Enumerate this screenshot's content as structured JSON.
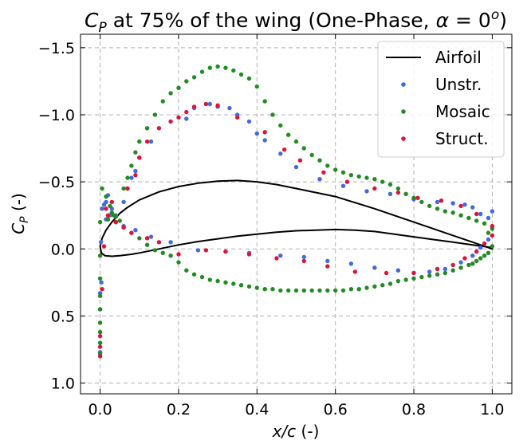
{
  "chart_data": {
    "type": "scatter",
    "title": {
      "pre": "C",
      "sub": "P",
      "mid": " at 75% of the wing (One-Phase, ",
      "alpha": "α",
      "eq": " = 0",
      "sup": "o",
      "post": ")"
    },
    "xlabel": {
      "italic": "x/c",
      "rest": " (-)"
    },
    "ylabel": {
      "pre": "C",
      "sub": "P",
      "rest": " (-)"
    },
    "xlim": [
      -0.05,
      1.05
    ],
    "ylim": [
      -1.6,
      1.08
    ],
    "y_inverted": true,
    "grid": true,
    "grid_style": "dashed",
    "legend_position": "top-right",
    "x_ticks": [
      {
        "value": 0.0,
        "label": "0.0"
      },
      {
        "value": 0.2,
        "label": "0.2"
      },
      {
        "value": 0.4,
        "label": "0.4"
      },
      {
        "value": 0.6,
        "label": "0.6"
      },
      {
        "value": 0.8,
        "label": "0.8"
      },
      {
        "value": 1.0,
        "label": "1.0"
      }
    ],
    "y_ticks": [
      {
        "value": -1.5,
        "label": "−1.5"
      },
      {
        "value": -1.0,
        "label": "−1.0"
      },
      {
        "value": -0.5,
        "label": "−0.5"
      },
      {
        "value": 0.0,
        "label": "0.0"
      },
      {
        "value": 0.5,
        "label": "0.5"
      },
      {
        "value": 1.0,
        "label": "1.0"
      }
    ],
    "series": [
      {
        "name": "Airfoil",
        "kind": "line",
        "color": "#000000",
        "points": [
          [
            1.0,
            0.0
          ],
          [
            0.95,
            -0.05
          ],
          [
            0.9,
            -0.1
          ],
          [
            0.8,
            -0.2
          ],
          [
            0.7,
            -0.3
          ],
          [
            0.6,
            -0.39
          ],
          [
            0.5,
            -0.45
          ],
          [
            0.45,
            -0.48
          ],
          [
            0.4,
            -0.5
          ],
          [
            0.35,
            -0.51
          ],
          [
            0.3,
            -0.505
          ],
          [
            0.25,
            -0.49
          ],
          [
            0.2,
            -0.465
          ],
          [
            0.15,
            -0.425
          ],
          [
            0.1,
            -0.365
          ],
          [
            0.07,
            -0.31
          ],
          [
            0.05,
            -0.265
          ],
          [
            0.03,
            -0.2
          ],
          [
            0.015,
            -0.14
          ],
          [
            0.005,
            -0.08
          ],
          [
            0.0,
            -0.02
          ],
          [
            0.003,
            0.03
          ],
          [
            0.012,
            0.05
          ],
          [
            0.03,
            0.055
          ],
          [
            0.05,
            0.05
          ],
          [
            0.08,
            0.04
          ],
          [
            0.1,
            0.03
          ],
          [
            0.15,
            0.0
          ],
          [
            0.2,
            -0.03
          ],
          [
            0.25,
            -0.055
          ],
          [
            0.3,
            -0.075
          ],
          [
            0.35,
            -0.095
          ],
          [
            0.4,
            -0.11
          ],
          [
            0.45,
            -0.125
          ],
          [
            0.5,
            -0.135
          ],
          [
            0.55,
            -0.14
          ],
          [
            0.6,
            -0.145
          ],
          [
            0.65,
            -0.14
          ],
          [
            0.7,
            -0.13
          ],
          [
            0.75,
            -0.11
          ],
          [
            0.8,
            -0.09
          ],
          [
            0.85,
            -0.07
          ],
          [
            0.9,
            -0.05
          ],
          [
            0.95,
            -0.03
          ],
          [
            1.0,
            -0.01
          ]
        ]
      },
      {
        "name": "Unstr.",
        "kind": "scatter",
        "color": "#4169e1",
        "points": [
          [
            0.0,
            0.33
          ],
          [
            0.0,
            0.45
          ],
          [
            0.0,
            0.62
          ],
          [
            0.0,
            0.7
          ],
          [
            0.0,
            0.77
          ],
          [
            0.002,
            -0.05
          ],
          [
            0.003,
            0.25
          ],
          [
            0.005,
            -0.3
          ],
          [
            0.01,
            -0.33
          ],
          [
            0.015,
            -0.35
          ],
          [
            0.02,
            -0.4
          ],
          [
            0.03,
            -0.3
          ],
          [
            0.04,
            -0.25
          ],
          [
            0.06,
            -0.35
          ],
          [
            0.07,
            -0.45
          ],
          [
            0.08,
            -0.53
          ],
          [
            0.09,
            -0.58
          ],
          [
            0.1,
            -0.68
          ],
          [
            0.13,
            -0.8
          ],
          [
            0.22,
            -0.97
          ],
          [
            0.24,
            -1.05
          ],
          [
            0.28,
            -1.08
          ],
          [
            0.3,
            -1.06
          ],
          [
            0.33,
            -1.05
          ],
          [
            0.35,
            -1.0
          ],
          [
            0.38,
            -0.95
          ],
          [
            0.4,
            -0.86
          ],
          [
            0.42,
            -0.81
          ],
          [
            0.46,
            -0.71
          ],
          [
            0.5,
            -0.61
          ],
          [
            0.56,
            -0.52
          ],
          [
            0.62,
            -0.47
          ],
          [
            0.68,
            -0.43
          ],
          [
            0.74,
            -0.41
          ],
          [
            0.8,
            -0.37
          ],
          [
            0.86,
            -0.35
          ],
          [
            0.9,
            -0.34
          ],
          [
            0.93,
            -0.33
          ],
          [
            0.95,
            -0.31
          ],
          [
            0.97,
            -0.26
          ],
          [
            0.99,
            -0.23
          ],
          [
            1.0,
            -0.28
          ],
          [
            0.99,
            -0.07
          ],
          [
            0.97,
            -0.01
          ],
          [
            0.95,
            0.05
          ],
          [
            0.92,
            0.1
          ],
          [
            0.88,
            0.15
          ],
          [
            0.84,
            0.17
          ],
          [
            0.8,
            0.18
          ],
          [
            0.76,
            0.16
          ],
          [
            0.7,
            0.14
          ],
          [
            0.64,
            0.11
          ],
          [
            0.58,
            0.09
          ],
          [
            0.52,
            0.06
          ],
          [
            0.46,
            0.05
          ],
          [
            0.38,
            0.03
          ],
          [
            0.32,
            0.02
          ],
          [
            0.25,
            0.01
          ],
          [
            0.18,
            -0.05
          ],
          [
            0.13,
            -0.09
          ],
          [
            0.09,
            -0.14
          ],
          [
            0.06,
            -0.17
          ],
          [
            0.04,
            -0.2
          ],
          [
            0.025,
            -0.25
          ],
          [
            0.015,
            -0.22
          ]
        ]
      },
      {
        "name": "Mosaic",
        "kind": "scatter",
        "color": "#228b22",
        "points": [
          [
            0.0,
            0.78
          ],
          [
            0.0,
            0.7
          ],
          [
            0.0,
            0.62
          ],
          [
            0.0,
            0.55
          ],
          [
            0.0,
            0.45
          ],
          [
            0.0,
            0.35
          ],
          [
            0.0,
            0.22
          ],
          [
            0.0,
            0.05
          ],
          [
            0.0,
            -0.2
          ],
          [
            0.005,
            -0.45
          ],
          [
            0.015,
            -0.39
          ],
          [
            0.025,
            -0.32
          ],
          [
            0.035,
            -0.25
          ],
          [
            0.06,
            -0.45
          ],
          [
            0.07,
            -0.53
          ],
          [
            0.08,
            -0.62
          ],
          [
            0.09,
            -0.72
          ],
          [
            0.1,
            -0.8
          ],
          [
            0.12,
            -0.9
          ],
          [
            0.14,
            -1.0
          ],
          [
            0.16,
            -1.1
          ],
          [
            0.18,
            -1.16
          ],
          [
            0.2,
            -1.2
          ],
          [
            0.22,
            -1.25
          ],
          [
            0.24,
            -1.28
          ],
          [
            0.26,
            -1.32
          ],
          [
            0.28,
            -1.35
          ],
          [
            0.3,
            -1.36
          ],
          [
            0.32,
            -1.35
          ],
          [
            0.34,
            -1.33
          ],
          [
            0.36,
            -1.3
          ],
          [
            0.38,
            -1.27
          ],
          [
            0.4,
            -1.21
          ],
          [
            0.42,
            -1.1
          ],
          [
            0.44,
            -1.0
          ],
          [
            0.46,
            -0.92
          ],
          [
            0.48,
            -0.85
          ],
          [
            0.5,
            -0.8
          ],
          [
            0.52,
            -0.75
          ],
          [
            0.54,
            -0.7
          ],
          [
            0.56,
            -0.66
          ],
          [
            0.58,
            -0.62
          ],
          [
            0.6,
            -0.59
          ],
          [
            0.62,
            -0.57
          ],
          [
            0.64,
            -0.55
          ],
          [
            0.66,
            -0.54
          ],
          [
            0.68,
            -0.53
          ],
          [
            0.7,
            -0.52
          ],
          [
            0.72,
            -0.5
          ],
          [
            0.74,
            -0.48
          ],
          [
            0.76,
            -0.45
          ],
          [
            0.78,
            -0.41
          ],
          [
            0.8,
            -0.38
          ],
          [
            0.82,
            -0.35
          ],
          [
            0.84,
            -0.32
          ],
          [
            0.86,
            -0.3
          ],
          [
            0.88,
            -0.28
          ],
          [
            0.9,
            -0.27
          ],
          [
            0.92,
            -0.25
          ],
          [
            0.94,
            -0.23
          ],
          [
            0.96,
            -0.21
          ],
          [
            0.98,
            -0.19
          ],
          [
            0.99,
            -0.12
          ],
          [
            1.0,
            -0.15
          ],
          [
            1.0,
            -0.02
          ],
          [
            0.99,
            0.03
          ],
          [
            0.98,
            0.05
          ],
          [
            0.97,
            0.07
          ],
          [
            0.96,
            0.09
          ],
          [
            0.95,
            0.11
          ],
          [
            0.94,
            0.12
          ],
          [
            0.92,
            0.14
          ],
          [
            0.9,
            0.16
          ],
          [
            0.88,
            0.18
          ],
          [
            0.86,
            0.19
          ],
          [
            0.84,
            0.2
          ],
          [
            0.82,
            0.21
          ],
          [
            0.8,
            0.22
          ],
          [
            0.78,
            0.23
          ],
          [
            0.76,
            0.24
          ],
          [
            0.74,
            0.26
          ],
          [
            0.72,
            0.27
          ],
          [
            0.7,
            0.28
          ],
          [
            0.68,
            0.29
          ],
          [
            0.66,
            0.3
          ],
          [
            0.64,
            0.3
          ],
          [
            0.62,
            0.31
          ],
          [
            0.6,
            0.31
          ],
          [
            0.58,
            0.31
          ],
          [
            0.56,
            0.31
          ],
          [
            0.54,
            0.31
          ],
          [
            0.52,
            0.31
          ],
          [
            0.5,
            0.31
          ],
          [
            0.48,
            0.31
          ],
          [
            0.46,
            0.31
          ],
          [
            0.44,
            0.3
          ],
          [
            0.42,
            0.3
          ],
          [
            0.4,
            0.29
          ],
          [
            0.38,
            0.28
          ],
          [
            0.36,
            0.27
          ],
          [
            0.34,
            0.26
          ],
          [
            0.32,
            0.25
          ],
          [
            0.3,
            0.24
          ],
          [
            0.28,
            0.23
          ],
          [
            0.26,
            0.21
          ],
          [
            0.24,
            0.19
          ],
          [
            0.22,
            0.16
          ],
          [
            0.2,
            0.1
          ],
          [
            0.18,
            0.05
          ],
          [
            0.16,
            0.03
          ],
          [
            0.14,
            0.01
          ],
          [
            0.12,
            -0.03
          ],
          [
            0.1,
            -0.08
          ],
          [
            0.08,
            -0.12
          ],
          [
            0.06,
            -0.16
          ],
          [
            0.05,
            -0.21
          ],
          [
            0.04,
            -0.24
          ],
          [
            0.03,
            -0.27
          ],
          [
            0.02,
            -0.22
          ]
        ]
      },
      {
        "name": "Struct.",
        "kind": "scatter",
        "color": "#dc143c",
        "points": [
          [
            0.0,
            0.8
          ],
          [
            0.0,
            0.73
          ],
          [
            0.0,
            0.65
          ],
          [
            0.005,
            0.3
          ],
          [
            0.01,
            -0.02
          ],
          [
            0.015,
            -0.3
          ],
          [
            0.03,
            -0.35
          ],
          [
            0.04,
            -0.2
          ],
          [
            0.07,
            -0.45
          ],
          [
            0.09,
            -0.55
          ],
          [
            0.1,
            -0.68
          ],
          [
            0.12,
            -0.8
          ],
          [
            0.15,
            -0.9
          ],
          [
            0.18,
            -0.95
          ],
          [
            0.2,
            -0.98
          ],
          [
            0.22,
            -1.02
          ],
          [
            0.24,
            -1.06
          ],
          [
            0.27,
            -1.08
          ],
          [
            0.3,
            -1.07
          ],
          [
            0.35,
            -0.98
          ],
          [
            0.42,
            -0.87
          ],
          [
            0.47,
            -0.74
          ],
          [
            0.51,
            -0.66
          ],
          [
            0.57,
            -0.57
          ],
          [
            0.63,
            -0.5
          ],
          [
            0.7,
            -0.45
          ],
          [
            0.76,
            -0.42
          ],
          [
            0.81,
            -0.38
          ],
          [
            0.87,
            -0.36
          ],
          [
            0.92,
            -0.32
          ],
          [
            0.96,
            -0.26
          ],
          [
            1.0,
            -0.17
          ],
          [
            1.0,
            -0.1
          ],
          [
            0.98,
            -0.04
          ],
          [
            0.96,
            0.02
          ],
          [
            0.93,
            0.07
          ],
          [
            0.9,
            0.12
          ],
          [
            0.86,
            0.15
          ],
          [
            0.8,
            0.18
          ],
          [
            0.73,
            0.18
          ],
          [
            0.65,
            0.17
          ],
          [
            0.58,
            0.13
          ],
          [
            0.52,
            0.09
          ],
          [
            0.45,
            0.07
          ],
          [
            0.38,
            0.04
          ],
          [
            0.32,
            0.02
          ],
          [
            0.27,
            0.01
          ],
          [
            0.2,
            0.04
          ],
          [
            0.15,
            -0.05
          ],
          [
            0.12,
            -0.08
          ],
          [
            0.08,
            -0.12
          ],
          [
            0.06,
            -0.16
          ],
          [
            0.04,
            -0.2
          ],
          [
            0.02,
            -0.25
          ]
        ]
      }
    ]
  }
}
